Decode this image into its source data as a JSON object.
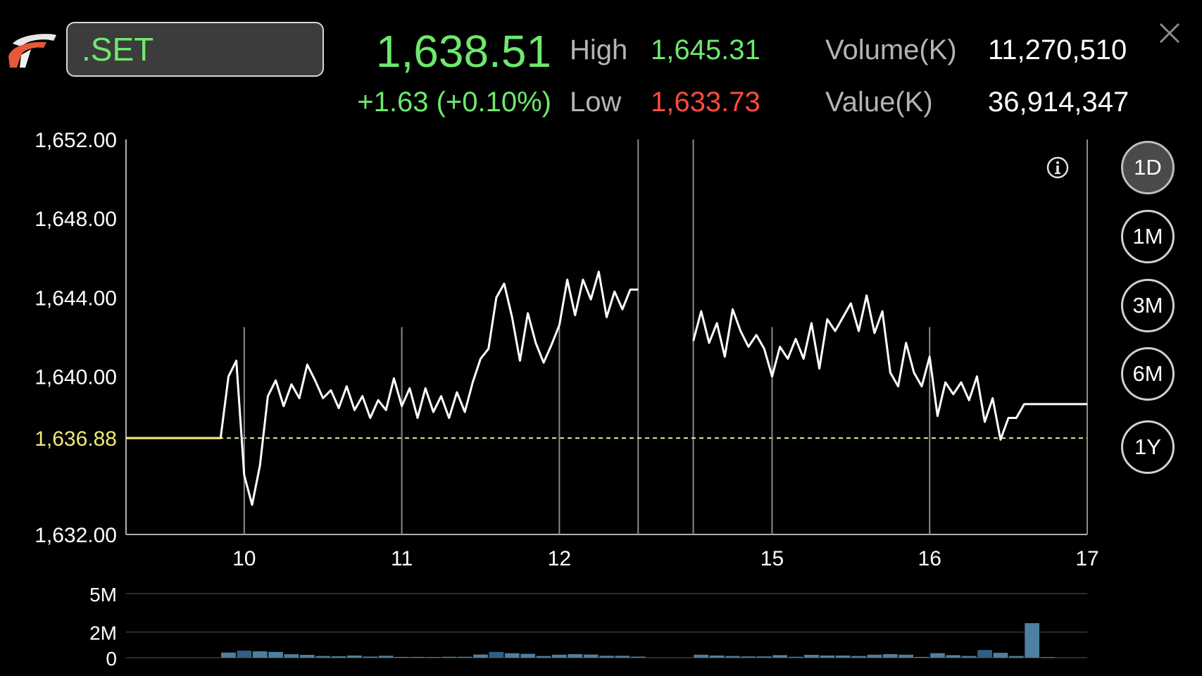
{
  "symbol": ".SET",
  "quote": {
    "last": "1,638.51",
    "change": "+1.63 (+0.10%)",
    "high_label": "High",
    "high": "1,645.31",
    "low_label": "Low",
    "low": "1,633.73",
    "volume_label": "Volume(K)",
    "volume": "11,270,510",
    "value_label": "Value(K)",
    "value": "36,914,347"
  },
  "colors": {
    "up": "#6ee86e",
    "down": "#ff4a3d",
    "reference": "#f0ea74",
    "volume_bar": "#4f7fa0",
    "volume_bar_dark": "#2f5f86"
  },
  "icons": {
    "logo": "logo-icon",
    "close": "close-icon",
    "info": "info-icon"
  },
  "periods": [
    {
      "label": "1D",
      "active": true
    },
    {
      "label": "1M",
      "active": false
    },
    {
      "label": "3M",
      "active": false
    },
    {
      "label": "6M",
      "active": false
    },
    {
      "label": "1Y",
      "active": false
    }
  ],
  "chart_data": [
    {
      "type": "line",
      "y_tick_labels": [
        "1,652.00",
        "1,648.00",
        "1,644.00",
        "1,640.00",
        "1,636.88",
        "1,632.00"
      ],
      "y_ticks": [
        1652,
        1648,
        1644,
        1640,
        1632
      ],
      "reference_label": "1,636.88",
      "reference_value": 1636.88,
      "ylim": [
        1632,
        1652
      ],
      "x_tick_labels": [
        "10",
        "11",
        "12",
        "15",
        "16",
        "17"
      ],
      "xlim": [
        0,
        122
      ],
      "x_tick_positions": [
        15,
        35,
        55,
        82,
        102,
        122
      ],
      "gap": [
        65,
        72
      ],
      "series": [
        {
          "segments": [
            [
              [
                0,
                1636.88
              ],
              [
                12,
                1636.88
              ],
              [
                13,
                1640.0
              ],
              [
                14,
                1640.8
              ],
              [
                15,
                1635.0
              ],
              [
                16,
                1633.5
              ],
              [
                17,
                1635.5
              ],
              [
                18,
                1639.0
              ],
              [
                19,
                1639.8
              ],
              [
                20,
                1638.5
              ],
              [
                21,
                1639.6
              ],
              [
                22,
                1638.9
              ],
              [
                23,
                1640.6
              ],
              [
                24,
                1639.8
              ],
              [
                25,
                1638.9
              ],
              [
                26,
                1639.3
              ],
              [
                27,
                1638.4
              ],
              [
                28,
                1639.5
              ],
              [
                29,
                1638.3
              ],
              [
                30,
                1639.0
              ],
              [
                31,
                1637.9
              ],
              [
                32,
                1638.8
              ],
              [
                33,
                1638.3
              ],
              [
                34,
                1639.9
              ],
              [
                35,
                1638.5
              ],
              [
                36,
                1639.4
              ],
              [
                37,
                1637.9
              ],
              [
                38,
                1639.4
              ],
              [
                39,
                1638.2
              ],
              [
                40,
                1639.0
              ],
              [
                41,
                1637.9
              ],
              [
                42,
                1639.2
              ],
              [
                43,
                1638.2
              ],
              [
                44,
                1639.7
              ],
              [
                45,
                1640.9
              ],
              [
                46,
                1641.4
              ],
              [
                47,
                1644.0
              ],
              [
                48,
                1644.7
              ],
              [
                49,
                1643.0
              ],
              [
                50,
                1640.8
              ],
              [
                51,
                1643.2
              ],
              [
                52,
                1641.7
              ],
              [
                53,
                1640.7
              ],
              [
                54,
                1641.6
              ],
              [
                55,
                1642.6
              ],
              [
                56,
                1644.9
              ],
              [
                57,
                1643.1
              ],
              [
                58,
                1644.9
              ],
              [
                59,
                1643.9
              ],
              [
                60,
                1645.3
              ],
              [
                61,
                1643.0
              ],
              [
                62,
                1644.3
              ],
              [
                63,
                1643.4
              ],
              [
                64,
                1644.4
              ],
              [
                65,
                1644.4
              ]
            ],
            [
              [
                72,
                1641.8
              ],
              [
                73,
                1643.3
              ],
              [
                74,
                1641.7
              ],
              [
                75,
                1642.7
              ],
              [
                76,
                1641.0
              ],
              [
                77,
                1643.4
              ],
              [
                78,
                1642.3
              ],
              [
                79,
                1641.5
              ],
              [
                80,
                1642.1
              ],
              [
                81,
                1641.4
              ],
              [
                82,
                1640.0
              ],
              [
                83,
                1641.5
              ],
              [
                84,
                1640.9
              ],
              [
                85,
                1641.9
              ],
              [
                86,
                1640.9
              ],
              [
                87,
                1642.7
              ],
              [
                88,
                1640.4
              ],
              [
                89,
                1642.9
              ],
              [
                90,
                1642.3
              ],
              [
                91,
                1643.0
              ],
              [
                92,
                1643.7
              ],
              [
                93,
                1642.3
              ],
              [
                94,
                1644.1
              ],
              [
                95,
                1642.2
              ],
              [
                96,
                1643.3
              ],
              [
                97,
                1640.2
              ],
              [
                98,
                1639.5
              ],
              [
                99,
                1641.7
              ],
              [
                100,
                1640.2
              ],
              [
                101,
                1639.5
              ],
              [
                102,
                1641.0
              ],
              [
                103,
                1638.0
              ],
              [
                104,
                1639.7
              ],
              [
                105,
                1639.1
              ],
              [
                106,
                1639.7
              ],
              [
                107,
                1638.8
              ],
              [
                108,
                1640.0
              ],
              [
                109,
                1637.7
              ],
              [
                110,
                1638.9
              ],
              [
                111,
                1636.8
              ],
              [
                112,
                1637.9
              ],
              [
                113,
                1637.9
              ],
              [
                114,
                1638.6
              ],
              [
                122,
                1638.6
              ]
            ]
          ]
        }
      ]
    },
    {
      "type": "bar",
      "y_tick_labels": [
        "5M",
        "2M",
        "0"
      ],
      "y_ticks": [
        5,
        2,
        0
      ],
      "ylim": [
        0,
        5
      ],
      "unit": "M",
      "xlim": [
        0,
        122
      ],
      "bars": [
        {
          "x": 13,
          "v": 0.4
        },
        {
          "x": 15,
          "v": 0.55,
          "dark": true
        },
        {
          "x": 17,
          "v": 0.5
        },
        {
          "x": 19,
          "v": 0.45
        },
        {
          "x": 21,
          "v": 0.27
        },
        {
          "x": 23,
          "v": 0.22
        },
        {
          "x": 25,
          "v": 0.13
        },
        {
          "x": 27,
          "v": 0.11
        },
        {
          "x": 29,
          "v": 0.17
        },
        {
          "x": 31,
          "v": 0.09
        },
        {
          "x": 33,
          "v": 0.15
        },
        {
          "x": 35,
          "v": 0.06
        },
        {
          "x": 37,
          "v": 0.06
        },
        {
          "x": 39,
          "v": 0.05
        },
        {
          "x": 41,
          "v": 0.07
        },
        {
          "x": 43,
          "v": 0.07
        },
        {
          "x": 45,
          "v": 0.25
        },
        {
          "x": 47,
          "v": 0.45,
          "dark": true
        },
        {
          "x": 49,
          "v": 0.35
        },
        {
          "x": 51,
          "v": 0.3
        },
        {
          "x": 53,
          "v": 0.13
        },
        {
          "x": 55,
          "v": 0.23
        },
        {
          "x": 57,
          "v": 0.28
        },
        {
          "x": 59,
          "v": 0.25
        },
        {
          "x": 61,
          "v": 0.15
        },
        {
          "x": 63,
          "v": 0.15
        },
        {
          "x": 65,
          "v": 0.08
        },
        {
          "x": 73,
          "v": 0.23
        },
        {
          "x": 75,
          "v": 0.17
        },
        {
          "x": 77,
          "v": 0.13
        },
        {
          "x": 79,
          "v": 0.1
        },
        {
          "x": 81,
          "v": 0.1
        },
        {
          "x": 83,
          "v": 0.2
        },
        {
          "x": 85,
          "v": 0.07
        },
        {
          "x": 87,
          "v": 0.22
        },
        {
          "x": 89,
          "v": 0.17
        },
        {
          "x": 91,
          "v": 0.17
        },
        {
          "x": 93,
          "v": 0.13
        },
        {
          "x": 95,
          "v": 0.23
        },
        {
          "x": 97,
          "v": 0.28
        },
        {
          "x": 99,
          "v": 0.23
        },
        {
          "x": 101,
          "v": 0.06
        },
        {
          "x": 103,
          "v": 0.35
        },
        {
          "x": 105,
          "v": 0.2
        },
        {
          "x": 107,
          "v": 0.13
        },
        {
          "x": 109,
          "v": 0.6,
          "dark": true
        },
        {
          "x": 111,
          "v": 0.38
        },
        {
          "x": 113,
          "v": 0.13
        },
        {
          "x": 115,
          "v": 2.7
        },
        {
          "x": 117,
          "v": 0.05
        }
      ]
    }
  ]
}
